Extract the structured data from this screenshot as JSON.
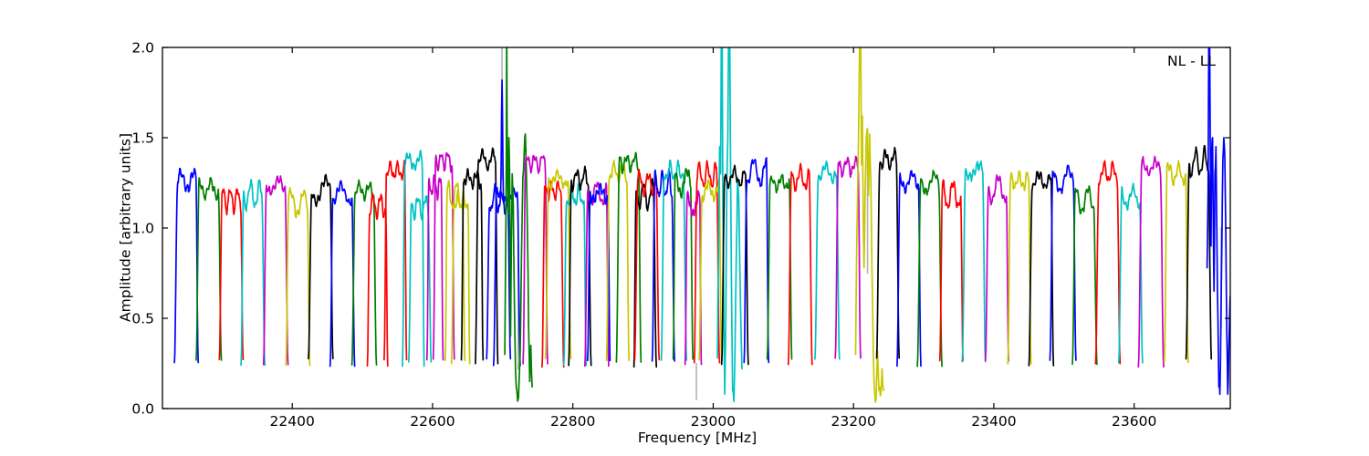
{
  "figure": {
    "annotation": "NL - LL",
    "background": "#ffffff"
  },
  "chart_data": {
    "type": "line",
    "title": "",
    "annotation": "NL - LL",
    "xlabel": "Frequency [MHz]",
    "ylabel": "Amplitude [arbitrary units]",
    "xlim": [
      22215,
      23737
    ],
    "ylim": [
      0.0,
      2.0
    ],
    "x_ticks": [
      22400,
      22600,
      22800,
      23000,
      23200,
      23400,
      23600
    ],
    "x_tick_labels": [
      "22400",
      "22600",
      "22800",
      "23000",
      "23200",
      "23400",
      "23600"
    ],
    "y_ticks": [
      0.0,
      0.5,
      1.0,
      1.5,
      2.0
    ],
    "y_tick_labels": [
      "0.0",
      "0.5",
      "1.0",
      "1.5",
      "2.0"
    ],
    "grid": false,
    "legend_position": "none",
    "colors": {
      "b": "#0000ff",
      "g": "#007f00",
      "r": "#ff0000",
      "c": "#00c2c2",
      "m": "#c800c8",
      "y": "#c8c800",
      "k": "#000000",
      "gray": "#b2b2b2",
      "frame": "#000000"
    },
    "subbands": [
      {
        "c": "b",
        "f1": 22235,
        "f2": 22263,
        "p": 1.31
      },
      {
        "c": "g",
        "f1": 22266,
        "f2": 22296,
        "p": 1.26
      },
      {
        "c": "r",
        "f1": 22299,
        "f2": 22327,
        "p": 1.22
      },
      {
        "c": "c",
        "f1": 22330,
        "f2": 22358,
        "p": 1.25
      },
      {
        "c": "m",
        "f1": 22362,
        "f2": 22391,
        "p": 1.27
      },
      {
        "c": "y",
        "f1": 22394,
        "f2": 22422,
        "p": 1.2
      },
      {
        "c": "k",
        "f1": 22426,
        "f2": 22455,
        "p": 1.27
      },
      {
        "c": "b",
        "f1": 22457,
        "f2": 22486,
        "p": 1.24
      },
      {
        "c": "g",
        "f1": 22488,
        "f2": 22517,
        "p": 1.24
      },
      {
        "c": "r",
        "f1": 22510,
        "f2": 22533,
        "p": 1.18
      },
      {
        "c": "r",
        "f1": 22534,
        "f2": 22560,
        "p": 1.35
      },
      {
        "c": "c",
        "f1": 22560,
        "f2": 22585,
        "p": 1.4
      },
      {
        "c": "c",
        "f1": 22569,
        "f2": 22595,
        "p": 1.17
      },
      {
        "c": "m",
        "f1": 22595,
        "f2": 22612,
        "p": 1.28
      },
      {
        "c": "m",
        "f1": 22604,
        "f2": 22628,
        "p": 1.42
      },
      {
        "c": "y",
        "f1": 22621,
        "f2": 22643,
        "p": 1.25
      },
      {
        "c": "y",
        "f1": 22630,
        "f2": 22650,
        "p": 1.18
      },
      {
        "c": "k",
        "f1": 22644,
        "f2": 22669,
        "p": 1.3
      },
      {
        "c": "k",
        "f1": 22664,
        "f2": 22690,
        "p": 1.42
      },
      {
        "c": "b",
        "f1": 22680,
        "f2": 22708,
        "p": 1.22,
        "spike": {
          "f": 22699,
          "a": 1.82
        }
      },
      {
        "c": "b",
        "f1": 22690,
        "f2": 22722,
        "p": 1.2
      },
      {
        "c": "g",
        "f1": 22703,
        "f2": 22742,
        "p": 1.52,
        "kind": "wild",
        "pts": [
          [
            0,
            0.3
          ],
          [
            0.03,
            0.85
          ],
          [
            0.055,
            1.4
          ],
          [
            0.07,
            2.6
          ],
          [
            0.09,
            1.35
          ],
          [
            0.12,
            1.08
          ],
          [
            0.15,
            1.5
          ],
          [
            0.18,
            1.25
          ],
          [
            0.21,
            0.4
          ],
          [
            0.24,
            0.9
          ],
          [
            0.27,
            1.3
          ],
          [
            0.31,
            1.12
          ],
          [
            0.35,
            0.6
          ],
          [
            0.39,
            0.22
          ],
          [
            0.44,
            0.1
          ],
          [
            0.5,
            0.06
          ],
          [
            0.56,
            0.3
          ],
          [
            0.61,
            0.85
          ],
          [
            0.66,
            1.28
          ],
          [
            0.71,
            1.42
          ],
          [
            0.75,
            1.52
          ],
          [
            0.79,
            1.3
          ],
          [
            0.83,
            0.95
          ],
          [
            0.87,
            0.45
          ],
          [
            0.91,
            0.15
          ],
          [
            0.95,
            0.35
          ],
          [
            1,
            0.12
          ]
        ]
      },
      {
        "c": "m",
        "f1": 22732,
        "f2": 22761,
        "p": 1.4
      },
      {
        "c": "r",
        "f1": 22759,
        "f2": 22784,
        "p": 1.25
      },
      {
        "c": "y",
        "f1": 22764,
        "f2": 22794,
        "p": 1.3
      },
      {
        "c": "c",
        "f1": 22790,
        "f2": 22816,
        "p": 1.22
      },
      {
        "c": "k",
        "f1": 22797,
        "f2": 22823,
        "p": 1.32
      },
      {
        "c": "m",
        "f1": 22820,
        "f2": 22848,
        "p": 1.25
      },
      {
        "c": "b",
        "f1": 22824,
        "f2": 22850,
        "p": 1.22
      },
      {
        "c": "y",
        "f1": 22851,
        "f2": 22877,
        "p": 1.35
      },
      {
        "c": "g",
        "f1": 22865,
        "f2": 22894,
        "p": 1.4
      },
      {
        "c": "k",
        "f1": 22890,
        "f2": 22916,
        "p": 1.25
      },
      {
        "c": "r",
        "f1": 22891,
        "f2": 22920,
        "p": 1.3
      },
      {
        "c": "b",
        "f1": 22916,
        "f2": 22942,
        "p": 1.3
      },
      {
        "c": "c",
        "f1": 22929,
        "f2": 22959,
        "p": 1.35
      },
      {
        "c": "g",
        "f1": 22946,
        "f2": 22968,
        "p": 1.32
      },
      {
        "c": "m",
        "f1": 22963,
        "f2": 22980,
        "p": 1.2
      },
      {
        "c": "r",
        "f1": 22976,
        "f2": 23006,
        "p": 1.35
      },
      {
        "c": "y",
        "f1": 22983,
        "f2": 23009,
        "p": 1.25
      },
      {
        "c": "c",
        "f1": 23006,
        "f2": 23041,
        "p": 1.5,
        "kind": "wild",
        "pts": [
          [
            0,
            0.28
          ],
          [
            0.05,
            0.9
          ],
          [
            0.09,
            1.45
          ],
          [
            0.13,
            1.3
          ],
          [
            0.16,
            2.6
          ],
          [
            0.19,
            2.6
          ],
          [
            0.22,
            1.15
          ],
          [
            0.26,
            0.5
          ],
          [
            0.3,
            0.08
          ],
          [
            0.34,
            0.45
          ],
          [
            0.38,
            1.2
          ],
          [
            0.42,
            1.48
          ],
          [
            0.46,
            2.6
          ],
          [
            0.5,
            2.55
          ],
          [
            0.54,
            1.25
          ],
          [
            0.58,
            0.55
          ],
          [
            0.62,
            0.1
          ],
          [
            0.67,
            0.04
          ],
          [
            0.72,
            0.35
          ],
          [
            0.77,
            0.85
          ],
          [
            0.82,
            1.28
          ],
          [
            0.87,
            1.15
          ],
          [
            0.93,
            0.65
          ],
          [
            1,
            0.22
          ]
        ]
      },
      {
        "c": "k",
        "f1": 23015,
        "f2": 23047,
        "p": 1.32
      },
      {
        "c": "b",
        "f1": 23047,
        "f2": 23076,
        "p": 1.38
      },
      {
        "c": "g",
        "f1": 23080,
        "f2": 23109,
        "p": 1.28
      },
      {
        "c": "r",
        "f1": 23110,
        "f2": 23138,
        "p": 1.33
      },
      {
        "c": "c",
        "f1": 23148,
        "f2": 23177,
        "p": 1.35
      },
      {
        "c": "m",
        "f1": 23177,
        "f2": 23207,
        "p": 1.38
      },
      {
        "c": "y",
        "f1": 23203,
        "f2": 23243,
        "p": 1.55,
        "kind": "wild",
        "pts": [
          [
            0,
            0.3
          ],
          [
            0.04,
            0.9
          ],
          [
            0.08,
            1.3
          ],
          [
            0.12,
            1.72
          ],
          [
            0.15,
            2.6
          ],
          [
            0.18,
            2.55
          ],
          [
            0.21,
            1.35
          ],
          [
            0.24,
            1.62
          ],
          [
            0.27,
            1.1
          ],
          [
            0.3,
            0.78
          ],
          [
            0.34,
            1.22
          ],
          [
            0.38,
            1.5
          ],
          [
            0.42,
            1.55
          ],
          [
            0.46,
            1.18
          ],
          [
            0.5,
            1.52
          ],
          [
            0.54,
            1.28
          ],
          [
            0.58,
            0.8
          ],
          [
            0.63,
            0.3
          ],
          [
            0.68,
            0.08
          ],
          [
            0.73,
            0.05
          ],
          [
            0.78,
            0.32
          ],
          [
            0.83,
            0.1
          ],
          [
            0.88,
            0.07
          ],
          [
            0.94,
            0.22
          ],
          [
            1,
            0.1
          ]
        ]
      },
      {
        "c": "k",
        "f1": 23236,
        "f2": 23262,
        "p": 1.42
      },
      {
        "c": "b",
        "f1": 23265,
        "f2": 23293,
        "p": 1.3
      },
      {
        "c": "g",
        "f1": 23294,
        "f2": 23323,
        "p": 1.3
      },
      {
        "c": "r",
        "f1": 23326,
        "f2": 23353,
        "p": 1.25
      },
      {
        "c": "c",
        "f1": 23358,
        "f2": 23385,
        "p": 1.35
      },
      {
        "c": "m",
        "f1": 23391,
        "f2": 23418,
        "p": 1.28
      },
      {
        "c": "y",
        "f1": 23423,
        "f2": 23450,
        "p": 1.3
      },
      {
        "c": "k",
        "f1": 23453,
        "f2": 23482,
        "p": 1.3
      },
      {
        "c": "b",
        "f1": 23483,
        "f2": 23514,
        "p": 1.33
      },
      {
        "c": "g",
        "f1": 23515,
        "f2": 23544,
        "p": 1.22
      },
      {
        "c": "r",
        "f1": 23548,
        "f2": 23577,
        "p": 1.35
      },
      {
        "c": "c",
        "f1": 23581,
        "f2": 23609,
        "p": 1.22
      },
      {
        "c": "m",
        "f1": 23609,
        "f2": 23639,
        "p": 1.37
      },
      {
        "c": "y",
        "f1": 23646,
        "f2": 23674,
        "p": 1.35
      },
      {
        "c": "k",
        "f1": 23677,
        "f2": 23707,
        "p": 1.43
      },
      {
        "c": "b",
        "f1": 23704,
        "f2": 23739,
        "p": 1.5,
        "kind": "wild",
        "pts": [
          [
            0,
            0.78
          ],
          [
            0.04,
            1.2
          ],
          [
            0.07,
            2.6
          ],
          [
            0.1,
            2.55
          ],
          [
            0.13,
            1.45
          ],
          [
            0.16,
            0.9
          ],
          [
            0.19,
            1.42
          ],
          [
            0.22,
            1.5
          ],
          [
            0.25,
            1.02
          ],
          [
            0.28,
            0.65
          ],
          [
            0.32,
            1.3
          ],
          [
            0.36,
            1.45
          ],
          [
            0.4,
            0.92
          ],
          [
            0.44,
            0.5
          ],
          [
            0.48,
            0.12
          ],
          [
            0.52,
            0.08
          ],
          [
            0.56,
            0.45
          ],
          [
            0.6,
            0.92
          ],
          [
            0.64,
            1.38
          ],
          [
            0.68,
            1.5
          ],
          [
            0.72,
            1.4
          ],
          [
            0.76,
            0.98
          ],
          [
            0.8,
            0.42
          ],
          [
            0.84,
            0.08
          ],
          [
            0.88,
            0.3
          ],
          [
            0.94,
            0.62
          ],
          [
            1,
            0.55
          ]
        ]
      }
    ],
    "gray_spikes": [
      {
        "f": 22699,
        "a1": 2.05,
        "a2": 1.27
      },
      {
        "f": 22722,
        "a1": 1.1,
        "a2": 0.22
      },
      {
        "f": 22976,
        "a1": 0.25,
        "a2": 0.05
      },
      {
        "f": 23220,
        "a1": 1.55,
        "a2": 0.75
      },
      {
        "f": 23724,
        "a1": 1.0,
        "a2": 0.45
      }
    ]
  }
}
